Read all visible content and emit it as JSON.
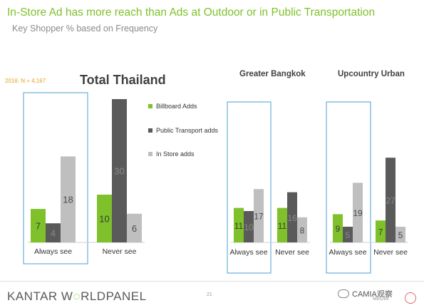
{
  "header": {
    "title": "In-Store Ad has more reach than Ads at Outdoor or in Public Transportation",
    "subtitle": "Key Shopper %  based on Frequency",
    "note": "2016: N = 4,167"
  },
  "legend": [
    {
      "label": "Billboard Adds",
      "color": "#7ec12a"
    },
    {
      "label": "Public Transport adds",
      "color": "#5a5a5a"
    },
    {
      "label": "In Store adds",
      "color": "#bfbfbf"
    }
  ],
  "chart_data": [
    {
      "type": "bar",
      "title": "Total Thailand",
      "categories": [
        "Always see",
        "Never see"
      ],
      "series": [
        {
          "name": "Billboard Adds",
          "values": [
            7,
            10
          ]
        },
        {
          "name": "Public Transport adds",
          "values": [
            4,
            30
          ]
        },
        {
          "name": "In Store adds",
          "values": [
            18,
            6
          ]
        }
      ],
      "highlight": "Always see"
    },
    {
      "type": "bar",
      "title": "Greater Bangkok",
      "categories": [
        "Always see",
        "Never see"
      ],
      "series": [
        {
          "name": "Billboard Adds",
          "values": [
            11,
            11
          ]
        },
        {
          "name": "Public Transport adds",
          "values": [
            10,
            16
          ]
        },
        {
          "name": "In Store adds",
          "values": [
            17,
            8
          ]
        }
      ],
      "highlight": "Always see"
    },
    {
      "type": "bar",
      "title": "Upcountry Urban",
      "categories": [
        "Always see",
        "Never see"
      ],
      "series": [
        {
          "name": "Billboard Adds",
          "values": [
            9,
            7
          ]
        },
        {
          "name": "Public Transport adds",
          "values": [
            5,
            27
          ]
        },
        {
          "name": "In Store adds",
          "values": [
            19,
            5
          ]
        }
      ],
      "highlight": "Always see"
    }
  ],
  "footer": {
    "brand_left": "KANTAR W",
    "brand_right": "RLDPANEL",
    "brand_o_glyph": "◌",
    "page": "21",
    "watermark": "CAMIA观察",
    "watermark_sub": "MEDIA"
  }
}
